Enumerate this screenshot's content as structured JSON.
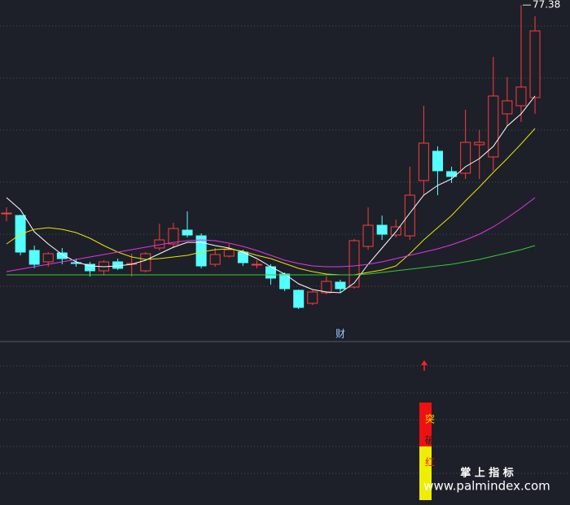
{
  "chart_data": {
    "type": "candlestick",
    "ylim": [
      36,
      78
    ],
    "up_color": "#ff3c3c",
    "down_color": "#54ffff",
    "open": [
      51.8,
      51.5,
      47.2,
      45.8,
      46.9,
      45.7,
      45.5,
      44.7,
      45.8,
      45.5,
      44.7,
      47.5,
      48.0,
      49.7,
      49.0,
      45.5,
      46.5,
      47.0,
      45.4,
      45.2,
      44.3,
      42.3,
      40.7,
      42.0,
      43.3,
      42.7,
      47.7,
      50.3,
      49.1,
      49.0,
      55.8,
      59.4,
      56.9,
      56.7,
      60.2,
      58.7,
      64.0,
      65.0,
      66.0
    ],
    "high": [
      52.5,
      51.6,
      47.8,
      47.0,
      47.5,
      46.2,
      45.8,
      46.0,
      46.2,
      46.8,
      47.0,
      50.5,
      50.6,
      52.0,
      49.3,
      47.5,
      48.0,
      47.3,
      46.0,
      45.5,
      44.5,
      42.4,
      42.3,
      44.0,
      43.6,
      48.6,
      52.5,
      51.5,
      51.0,
      57.5,
      65.0,
      60.0,
      57.5,
      64.5,
      62.0,
      71.0,
      68.5,
      77.38,
      76.0
    ],
    "low": [
      50.8,
      46.6,
      45.0,
      45.2,
      45.5,
      45.2,
      44.0,
      44.2,
      44.8,
      44.0,
      44.5,
      47.2,
      47.5,
      48.8,
      45.0,
      45.2,
      46.3,
      45.3,
      45.0,
      43.0,
      42.2,
      40.0,
      40.5,
      41.8,
      42.0,
      42.5,
      47.3,
      48.5,
      48.8,
      48.5,
      54.0,
      54.0,
      55.5,
      56.0,
      56.0,
      57.0,
      62.5,
      63.0,
      64.0
    ],
    "close": [
      51.8,
      47.0,
      45.5,
      46.8,
      46.2,
      45.6,
      44.7,
      45.8,
      45.0,
      45.6,
      46.8,
      48.5,
      49.9,
      49.1,
      45.3,
      46.7,
      47.3,
      45.7,
      45.5,
      43.8,
      42.5,
      40.2,
      42.1,
      43.4,
      42.5,
      48.4,
      50.3,
      49.2,
      50.1,
      54.0,
      60.4,
      57.0,
      56.3,
      60.5,
      60.5,
      66.2,
      65.6,
      67.3,
      74.2
    ],
    "high_label": "77.38",
    "lines": [
      {
        "color": "#ffffff",
        "values": [
          53.7,
          52.2,
          49.5,
          48.0,
          46.7,
          45.8,
          45.3,
          45.2,
          45.3,
          45.5,
          46.0,
          46.8,
          47.6,
          48.2,
          48.2,
          47.8,
          47.5,
          47.0,
          46.2,
          45.2,
          44.3,
          43.1,
          42.4,
          42.1,
          42.0,
          43.2,
          45.5,
          47.5,
          49.5,
          51.8,
          54.0,
          55.2,
          56.0,
          57.5,
          58.5,
          60.0,
          62.5,
          64.0,
          66.2
        ]
      },
      {
        "color": "#e6e600",
        "values": [
          48.0,
          49.2,
          49.8,
          50.0,
          49.8,
          49.4,
          48.7,
          47.8,
          47.0,
          46.4,
          46.1,
          46.2,
          46.4,
          46.6,
          47.0,
          47.3,
          47.4,
          47.1,
          46.6,
          46.2,
          45.6,
          45.0,
          44.6,
          44.3,
          44.2,
          44.2,
          44.5,
          44.8,
          45.3,
          46.8,
          48.5,
          50.0,
          51.5,
          53.3,
          55.0,
          56.8,
          58.5,
          60.3,
          62.2
        ]
      },
      {
        "color": "#e633e6",
        "values": [
          44.6,
          44.9,
          45.2,
          45.5,
          45.8,
          46.1,
          46.4,
          46.7,
          47.0,
          47.3,
          47.6,
          47.9,
          48.2,
          48.4,
          48.5,
          48.4,
          48.1,
          47.7,
          47.2,
          46.6,
          46.0,
          45.6,
          45.3,
          45.2,
          45.2,
          45.3,
          45.5,
          45.8,
          46.2,
          46.6,
          47.0,
          47.4,
          47.9,
          48.5,
          49.2,
          50.1,
          51.2,
          52.4,
          53.7
        ]
      },
      {
        "color": "#33cc33",
        "values": [
          44.2,
          44.2,
          44.2,
          44.2,
          44.2,
          44.2,
          44.2,
          44.2,
          44.2,
          44.2,
          44.2,
          44.2,
          44.2,
          44.2,
          44.2,
          44.2,
          44.2,
          44.2,
          44.2,
          44.2,
          44.2,
          44.2,
          44.2,
          44.2,
          44.2,
          44.2,
          44.3,
          44.5,
          44.7,
          44.9,
          45.1,
          45.3,
          45.5,
          45.8,
          46.1,
          46.5,
          46.9,
          47.3,
          47.8
        ]
      }
    ],
    "event_label": "财",
    "signal_chars": [
      "突",
      "破",
      "红"
    ],
    "watermark_cn": "掌 上 指 标",
    "watermark_url": "www.palmindex.com"
  }
}
